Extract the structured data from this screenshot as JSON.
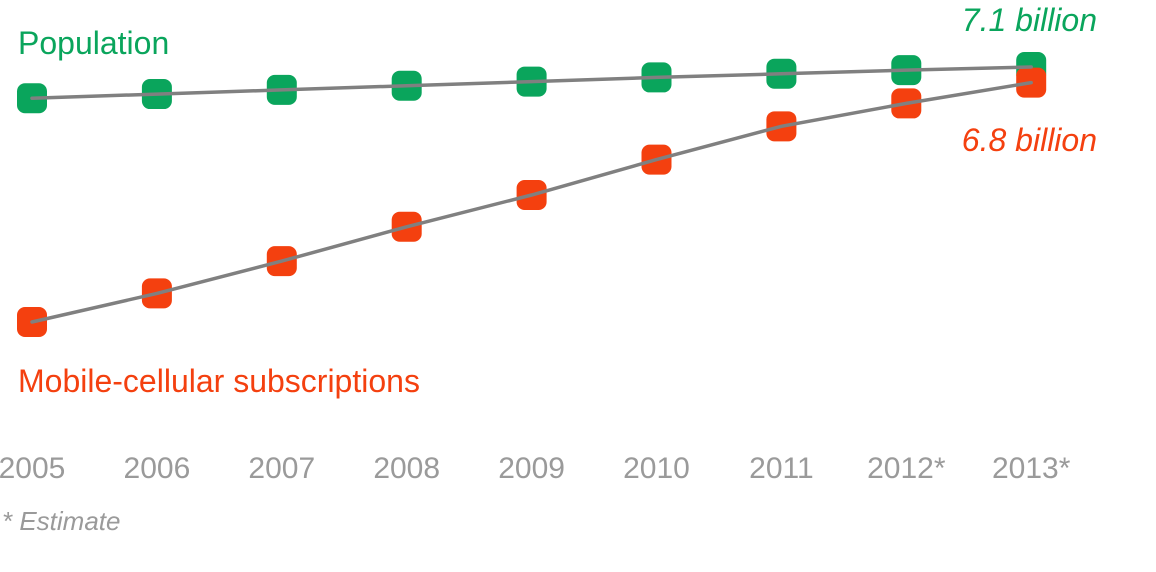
{
  "colors": {
    "population": "#0aa55c",
    "mobile": "#f4400f",
    "line": "#808080",
    "axis_text": "#9a9a9a"
  },
  "chart_data": {
    "type": "line",
    "categories": [
      "2005",
      "2006",
      "2007",
      "2008",
      "2009",
      "2010",
      "2011",
      "2012*",
      "2013*"
    ],
    "series": [
      {
        "name": "Population",
        "unit": "billion",
        "values": [
          6.5,
          6.58,
          6.66,
          6.74,
          6.82,
          6.9,
          6.97,
          7.04,
          7.1
        ]
      },
      {
        "name": "Mobile-cellular subscriptions",
        "unit": "billion",
        "values": [
          2.2,
          2.75,
          3.37,
          4.03,
          4.64,
          5.32,
          5.96,
          6.4,
          6.8
        ]
      }
    ],
    "end_labels": {
      "population": "7.1 billion",
      "mobile": "6.8 billion"
    },
    "ylim": [
      0,
      7.5
    ],
    "grid": false,
    "note": "* Estimate"
  }
}
